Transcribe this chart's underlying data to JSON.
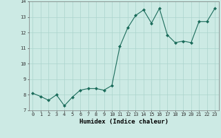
{
  "x": [
    0,
    1,
    2,
    3,
    4,
    5,
    6,
    7,
    8,
    9,
    10,
    11,
    12,
    13,
    14,
    15,
    16,
    17,
    18,
    19,
    20,
    21,
    22,
    23
  ],
  "y": [
    8.1,
    7.9,
    7.65,
    8.0,
    7.3,
    7.85,
    8.3,
    8.4,
    8.4,
    8.3,
    8.6,
    11.1,
    12.3,
    13.1,
    13.45,
    12.6,
    13.55,
    11.85,
    11.35,
    11.45,
    11.35,
    12.7,
    12.7,
    13.55
  ],
  "xlabel": "Humidex (Indice chaleur)",
  "ylim": [
    7,
    14
  ],
  "xlim_min": -0.5,
  "xlim_max": 23.5,
  "yticks": [
    7,
    8,
    9,
    10,
    11,
    12,
    13,
    14
  ],
  "xticks": [
    0,
    1,
    2,
    3,
    4,
    5,
    6,
    7,
    8,
    9,
    10,
    11,
    12,
    13,
    14,
    15,
    16,
    17,
    18,
    19,
    20,
    21,
    22,
    23
  ],
  "line_color": "#1a6b5a",
  "marker_color": "#1a6b5a",
  "bg_color": "#cceae4",
  "grid_color": "#aad4cc",
  "tick_fontsize": 5,
  "xlabel_fontsize": 6.5,
  "ylabel_fontsize": 5
}
